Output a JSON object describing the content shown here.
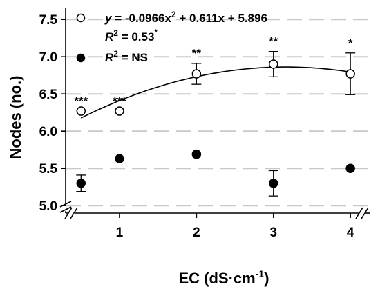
{
  "chart_data": {
    "type": "scatter",
    "xlabel_main": "EC (dS·cm",
    "xlabel_sup": "-1",
    "xlabel_tail": ")",
    "ylabel": "Nodes (no.)",
    "xlim": [
      0.3,
      4.25
    ],
    "ylim": [
      4.9,
      7.65
    ],
    "xticks": [
      1,
      2,
      3,
      4
    ],
    "xtick_labels": [
      "1",
      "2",
      "3",
      "4"
    ],
    "yticks": [
      5.0,
      5.5,
      6.0,
      6.5,
      7.0,
      7.5
    ],
    "ytick_labels": [
      "5.0",
      "5.5",
      "6.0",
      "6.5",
      "7.0",
      "7.5"
    ],
    "grid": true,
    "legend_position": "top-left",
    "axis_breaks": true,
    "series": [
      {
        "marker": "open-circle",
        "x": [
          0.5,
          1,
          2,
          3,
          4
        ],
        "y": [
          6.27,
          6.27,
          6.77,
          6.9,
          6.77
        ],
        "err": [
          0.0,
          0.0,
          0.14,
          0.17,
          0.28
        ],
        "significance": [
          "***",
          "***",
          "**",
          "**",
          "*"
        ],
        "fit": {
          "a": -0.0966,
          "b": 0.611,
          "c": 5.896,
          "x_range": [
            0.5,
            4
          ]
        },
        "legend": {
          "eq_y": "y",
          "eq_mid": " = -0.0966x",
          "eq_sup": "2",
          "eq_tail": " + 0.611x + 5.896",
          "r2_label": "R",
          "r2_sup": "2",
          "r2_value": " = 0.53",
          "r2_mark": "*"
        }
      },
      {
        "marker": "filled-circle",
        "x": [
          0.5,
          1,
          2,
          3,
          4
        ],
        "y": [
          5.3,
          5.63,
          5.69,
          5.3,
          5.5
        ],
        "err": [
          0.11,
          0.0,
          0.0,
          0.17,
          0.0
        ],
        "legend": {
          "r2_label": "R",
          "r2_sup": "2",
          "r2_value": " = NS"
        }
      }
    ]
  }
}
